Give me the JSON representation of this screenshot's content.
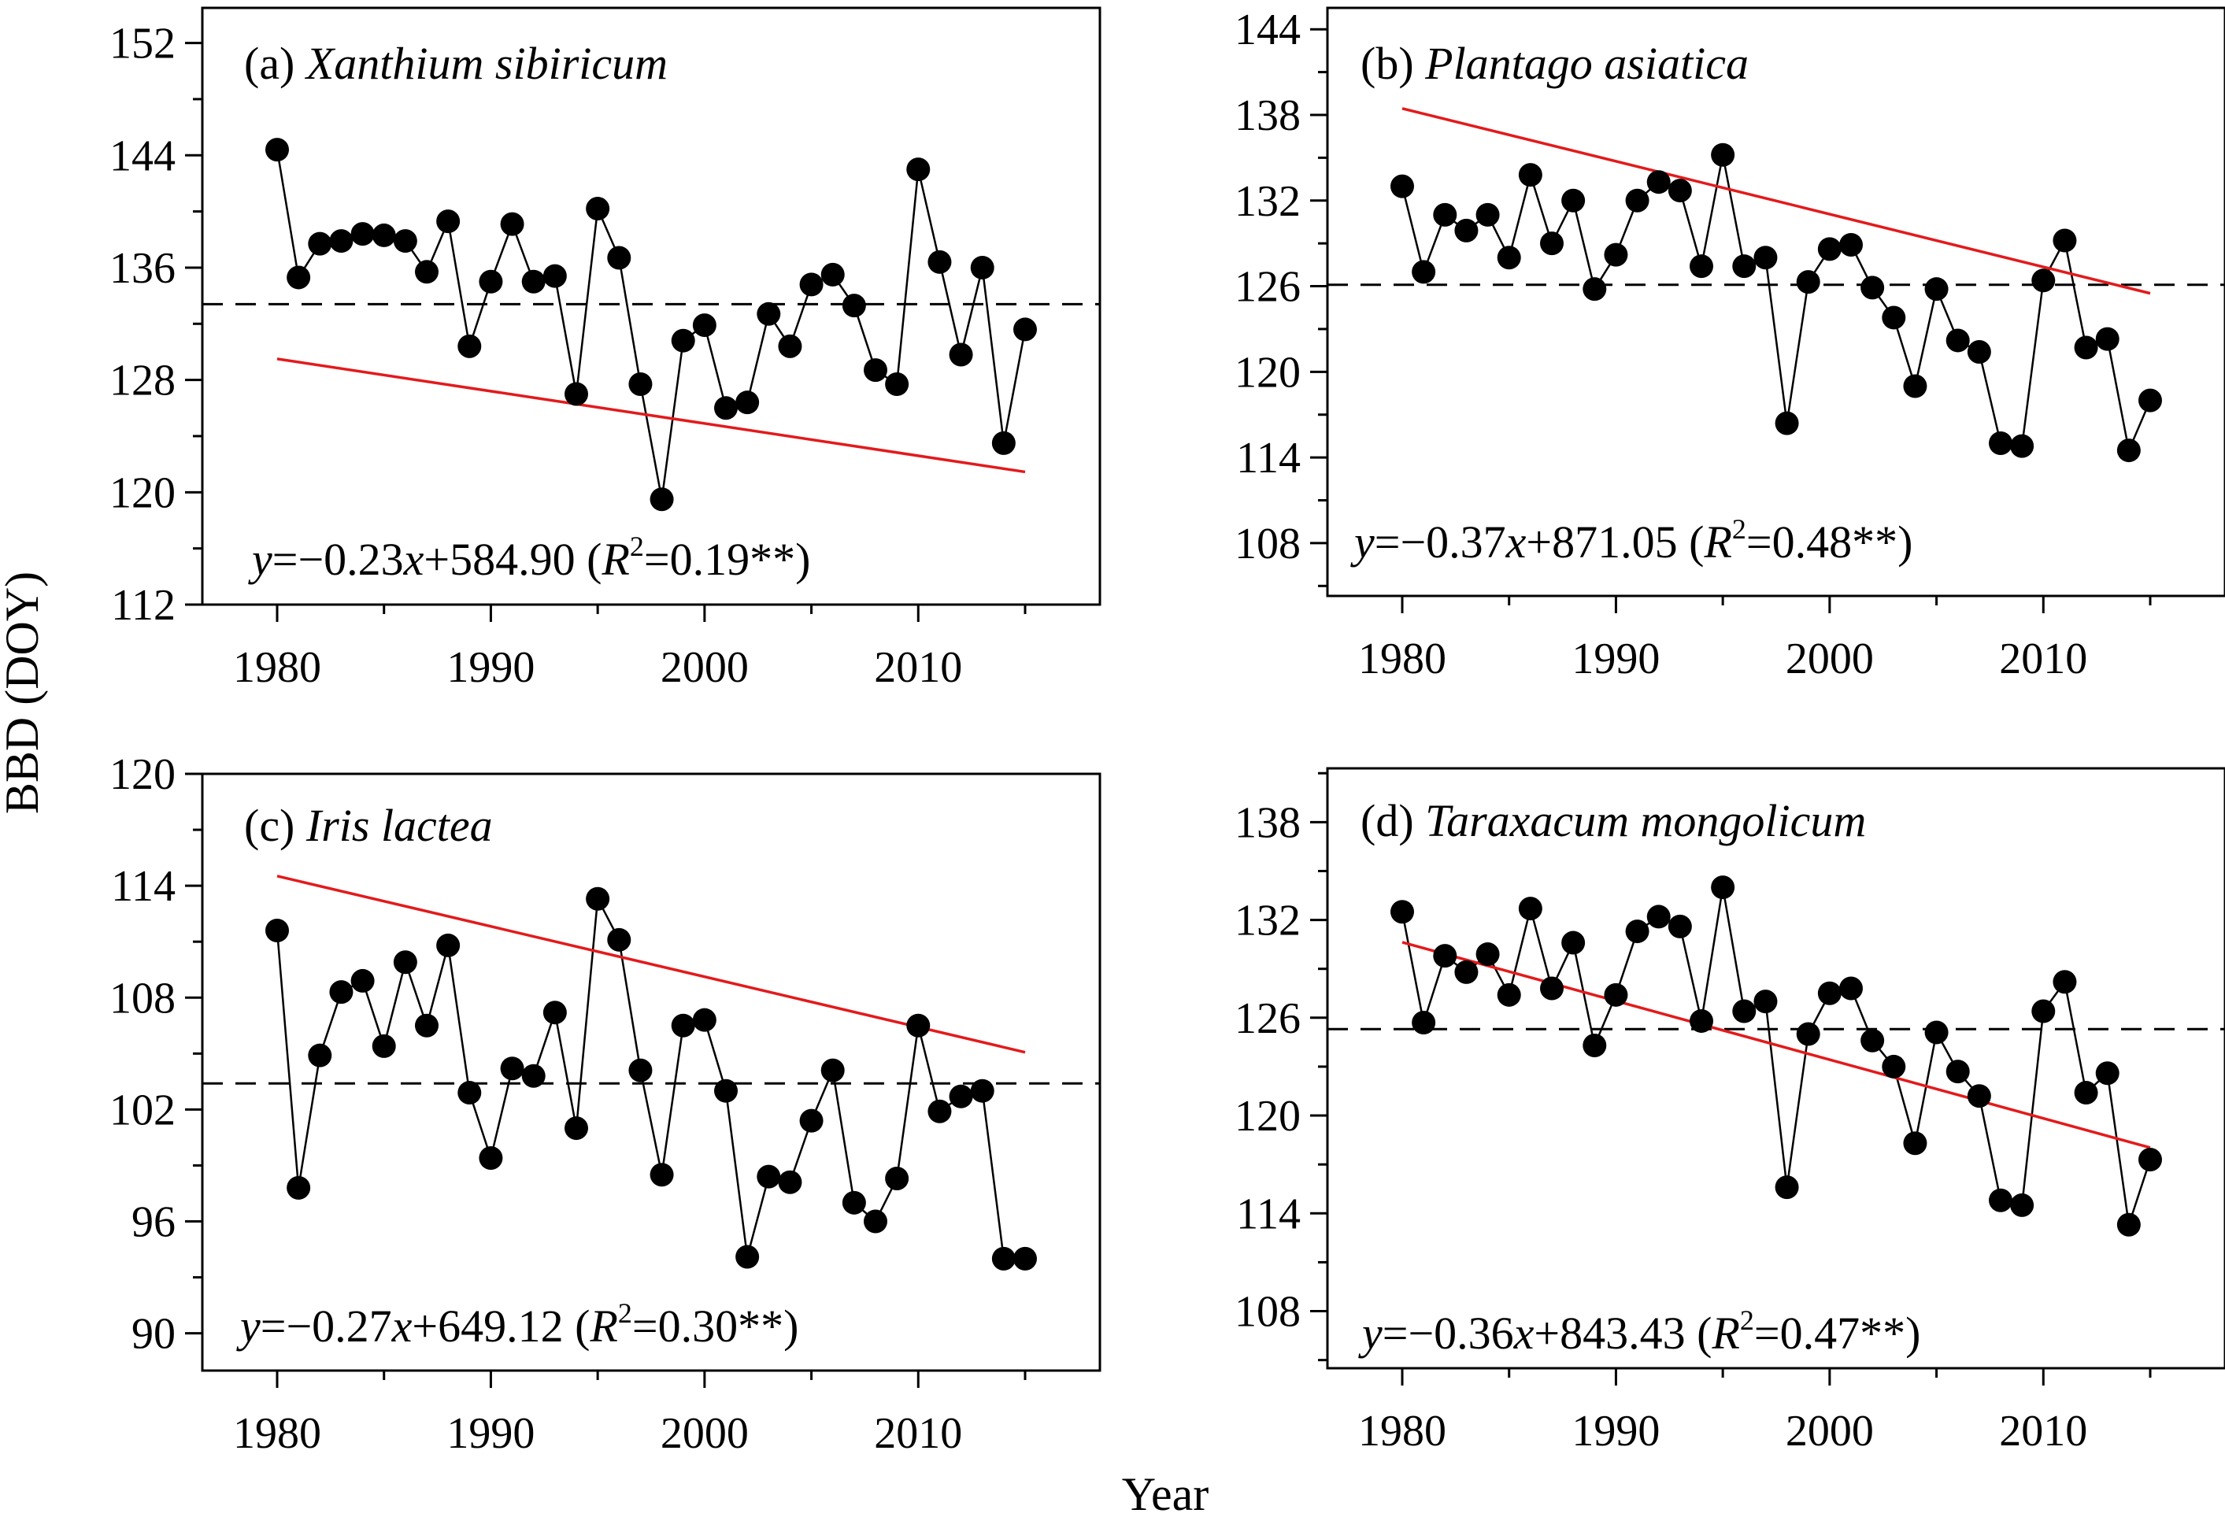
{
  "figure": {
    "ylabel": "BBD (DOY)",
    "xlabel": "Year"
  },
  "colors": {
    "observed": "#000000",
    "trend": "#e31a1c",
    "mean": "#000000"
  },
  "chart_data": [
    {
      "type": "line",
      "panel": "a",
      "title_prefix": "(a) ",
      "title_species": "Xanthium sibiricum",
      "equation": {
        "y": "y",
        "slope_part": "=−0.23",
        "x": "x",
        "intercept_part": "+584.90 (",
        "r": "R",
        "sup": "2",
        "r_value": "=0.19**)"
      },
      "x": [
        1980,
        1981,
        1982,
        1983,
        1984,
        1985,
        1986,
        1987,
        1988,
        1989,
        1990,
        1991,
        1992,
        1993,
        1994,
        1995,
        1996,
        1997,
        1998,
        1999,
        2000,
        2001,
        2002,
        2003,
        2004,
        2005,
        2006,
        2007,
        2008,
        2009,
        2010,
        2011,
        2012,
        2013,
        2014,
        2015
      ],
      "y": [
        144.4,
        135.3,
        137.7,
        137.9,
        138.4,
        138.3,
        137.9,
        135.7,
        139.3,
        130.4,
        135.0,
        139.1,
        135.0,
        135.4,
        127.0,
        140.2,
        136.7,
        127.7,
        119.5,
        130.8,
        131.9,
        126.0,
        126.4,
        132.7,
        130.4,
        134.8,
        135.5,
        133.3,
        128.7,
        127.7,
        143.0,
        136.4,
        129.8,
        136.0,
        123.5,
        131.6
      ],
      "trend": {
        "slope": -0.23,
        "intercept": 584.9
      },
      "mean": 133.4,
      "xlim": [
        1976.5,
        2018.5
      ],
      "xticks": [
        1980,
        1990,
        2000,
        2010
      ],
      "ylim": [
        112,
        154.5
      ],
      "yticks": [
        112,
        120,
        128,
        136,
        144,
        152
      ],
      "yminor": [
        116,
        124,
        132,
        140,
        148
      ],
      "grid": false
    },
    {
      "type": "line",
      "panel": "b",
      "title_prefix": "(b) ",
      "title_species": "Plantago asiatica",
      "equation": {
        "y": "y",
        "slope_part": "=−0.37",
        "x": "x",
        "intercept_part": "+871.05 (",
        "r": "R",
        "sup": "2",
        "r_value": "=0.48**)"
      },
      "x": [
        1980,
        1981,
        1982,
        1983,
        1984,
        1985,
        1986,
        1987,
        1988,
        1989,
        1990,
        1991,
        1992,
        1993,
        1994,
        1995,
        1996,
        1997,
        1998,
        1999,
        2000,
        2001,
        2002,
        2003,
        2004,
        2005,
        2006,
        2007,
        2008,
        2009,
        2010,
        2011,
        2012,
        2013,
        2014,
        2015
      ],
      "y": [
        133.0,
        127.0,
        131.0,
        129.9,
        131.0,
        128.0,
        133.8,
        129.0,
        132.0,
        125.8,
        128.2,
        132.0,
        133.3,
        132.7,
        127.4,
        135.2,
        127.4,
        128.0,
        116.4,
        126.3,
        128.6,
        128.9,
        125.9,
        123.8,
        119.0,
        125.8,
        122.2,
        121.4,
        115.0,
        114.8,
        126.4,
        129.2,
        121.7,
        122.3,
        114.5,
        118.0
      ],
      "trend": {
        "slope": -0.37,
        "intercept": 871.05
      },
      "mean": 126.1,
      "xlim": [
        1976.5,
        2018.5
      ],
      "xticks": [
        1980,
        1990,
        2000,
        2010
      ],
      "ylim": [
        104.3,
        145.5
      ],
      "yticks": [
        108,
        114,
        120,
        126,
        132,
        138,
        144
      ],
      "yminor": [
        105,
        111,
        117,
        123,
        129,
        135,
        141
      ],
      "grid": false
    },
    {
      "type": "line",
      "panel": "c",
      "title_prefix": "(c) ",
      "title_species": "Iris lactea",
      "equation": {
        "y": "y",
        "slope_part": "=−0.27",
        "x": "x",
        "intercept_part": "+649.12 (",
        "r": "R",
        "sup": "2",
        "r_value": "=0.30**)"
      },
      "x": [
        1980,
        1981,
        1982,
        1983,
        1984,
        1985,
        1986,
        1987,
        1988,
        1989,
        1990,
        1991,
        1992,
        1993,
        1994,
        1995,
        1996,
        1997,
        1998,
        1999,
        2000,
        2001,
        2002,
        2003,
        2004,
        2005,
        2006,
        2007,
        2008,
        2009,
        2010,
        2011,
        2012,
        2013,
        2014,
        2015
      ],
      "y": [
        111.6,
        97.8,
        104.9,
        108.3,
        108.9,
        105.4,
        109.9,
        106.5,
        110.8,
        102.9,
        99.4,
        104.2,
        103.8,
        107.2,
        101.0,
        113.3,
        111.1,
        104.1,
        98.5,
        106.5,
        106.8,
        103.0,
        94.1,
        98.4,
        98.1,
        101.4,
        104.1,
        97.0,
        96.0,
        98.3,
        106.5,
        101.9,
        102.7,
        103.0,
        94.0,
        94.0
      ],
      "trend": {
        "slope": -0.27,
        "intercept": 649.12
      },
      "mean": 103.4,
      "xlim": [
        1976.5,
        2018.5
      ],
      "xticks": [
        1980,
        1990,
        2000,
        2010
      ],
      "ylim": [
        88,
        120
      ],
      "yticks": [
        90,
        96,
        102,
        108,
        114,
        120
      ],
      "yminor": [
        93,
        99,
        105,
        111,
        117
      ],
      "grid": false
    },
    {
      "type": "line",
      "panel": "d",
      "title_prefix": "(d) ",
      "title_species": "Taraxacum mongolicum",
      "equation": {
        "y": "y",
        "slope_part": "=−0.36",
        "x": "x",
        "intercept_part": "+843.43 (",
        "r": "R",
        "sup": "2",
        "r_value": "=0.47**)"
      },
      "x": [
        1980,
        1981,
        1982,
        1983,
        1984,
        1985,
        1986,
        1987,
        1988,
        1989,
        1990,
        1991,
        1992,
        1993,
        1994,
        1995,
        1996,
        1997,
        1998,
        1999,
        2000,
        2001,
        2002,
        2003,
        2004,
        2005,
        2006,
        2007,
        2008,
        2009,
        2010,
        2011,
        2012,
        2013,
        2014,
        2015
      ],
      "y": [
        132.5,
        125.7,
        129.8,
        128.8,
        129.9,
        127.4,
        132.7,
        127.8,
        130.6,
        124.3,
        127.4,
        131.3,
        132.2,
        131.6,
        125.8,
        134.0,
        126.4,
        127.0,
        115.6,
        125.0,
        127.5,
        127.8,
        124.6,
        123.0,
        118.3,
        125.1,
        122.7,
        121.2,
        114.8,
        114.5,
        126.4,
        128.2,
        121.4,
        122.6,
        113.3,
        117.3
      ],
      "trend": {
        "slope": -0.36,
        "intercept": 843.43
      },
      "mean": 125.3,
      "xlim": [
        1976.5,
        2018.5
      ],
      "xticks": [
        1980,
        1990,
        2000,
        2010
      ],
      "ylim": [
        104.5,
        141.3
      ],
      "yticks": [
        108,
        114,
        120,
        126,
        132,
        138
      ],
      "yminor": [
        105,
        111,
        117,
        123,
        129,
        135,
        141
      ],
      "grid": false
    }
  ]
}
